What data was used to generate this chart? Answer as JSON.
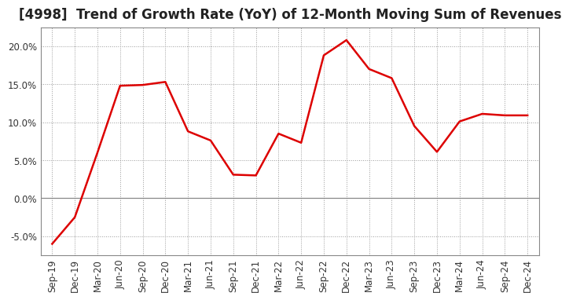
{
  "title": "[4998]  Trend of Growth Rate (YoY) of 12-Month Moving Sum of Revenues",
  "x_labels": [
    "Sep-19",
    "Dec-19",
    "Mar-20",
    "Jun-20",
    "Sep-20",
    "Dec-20",
    "Mar-21",
    "Jun-21",
    "Sep-21",
    "Dec-21",
    "Mar-22",
    "Jun-22",
    "Sep-22",
    "Dec-22",
    "Mar-23",
    "Jun-23",
    "Sep-23",
    "Dec-23",
    "Mar-24",
    "Jun-24",
    "Sep-24",
    "Dec-24"
  ],
  "y_values": [
    -6.0,
    -2.5,
    6.0,
    14.8,
    14.9,
    15.3,
    8.8,
    7.6,
    3.1,
    3.0,
    8.5,
    7.3,
    18.8,
    20.8,
    17.0,
    15.8,
    9.5,
    6.1,
    10.1,
    11.1,
    10.9,
    10.9
  ],
  "line_color": "#dd0000",
  "line_width": 1.8,
  "ylim": [
    -7.5,
    22.5
  ],
  "yticks": [
    -5.0,
    0.0,
    5.0,
    10.0,
    15.0,
    20.0
  ],
  "background_color": "#ffffff",
  "grid_color": "#999999",
  "title_fontsize": 12,
  "tick_fontsize": 8.5
}
